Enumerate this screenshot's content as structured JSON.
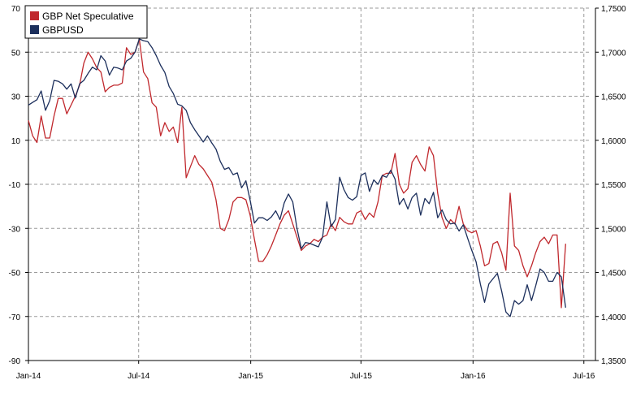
{
  "chart_data": {
    "type": "line",
    "title": "",
    "x_tick_labels": [
      "Jan-14",
      "Jul-14",
      "Jan-15",
      "Jul-15",
      "Jan-16",
      "Jul-16"
    ],
    "x_range": [
      "2014-01-01",
      "2016-07-20"
    ],
    "y_left": {
      "ticks": [
        70,
        50,
        30,
        10,
        -10,
        -30,
        -50,
        -70,
        -90
      ],
      "ylim": [
        -90,
        70
      ]
    },
    "y_right": {
      "ticks": [
        1.75,
        1.7,
        1.65,
        1.6,
        1.55,
        1.5,
        1.45,
        1.4,
        1.35
      ],
      "tick_labels": [
        "1,7500",
        "1,7000",
        "1,6500",
        "1,6000",
        "1,5500",
        "1,5000",
        "1,4500",
        "1,4000",
        "1,3500"
      ],
      "ylim": [
        1.35,
        1.75
      ]
    },
    "grid": true,
    "legend_position": "top-left",
    "series": [
      {
        "name": "GBP Net Speculative",
        "axis": "left",
        "color": "#c0282d",
        "points": [
          [
            "2014-01-01",
            19
          ],
          [
            "2014-01-08",
            12
          ],
          [
            "2014-01-15",
            9
          ],
          [
            "2014-01-22",
            21
          ],
          [
            "2014-01-29",
            11
          ],
          [
            "2014-02-05",
            11
          ],
          [
            "2014-02-12",
            21
          ],
          [
            "2014-02-19",
            29
          ],
          [
            "2014-02-26",
            29
          ],
          [
            "2014-03-05",
            22
          ],
          [
            "2014-03-12",
            26
          ],
          [
            "2014-03-19",
            30
          ],
          [
            "2014-03-26",
            35
          ],
          [
            "2014-04-02",
            45
          ],
          [
            "2014-04-09",
            50
          ],
          [
            "2014-04-16",
            47
          ],
          [
            "2014-04-23",
            43
          ],
          [
            "2014-04-30",
            41
          ],
          [
            "2014-05-07",
            32
          ],
          [
            "2014-05-14",
            34
          ],
          [
            "2014-05-21",
            35
          ],
          [
            "2014-05-28",
            35
          ],
          [
            "2014-06-04",
            36
          ],
          [
            "2014-06-11",
            52
          ],
          [
            "2014-06-18",
            49
          ],
          [
            "2014-06-25",
            50
          ],
          [
            "2014-07-02",
            56
          ],
          [
            "2014-07-09",
            41
          ],
          [
            "2014-07-16",
            38
          ],
          [
            "2014-07-23",
            27
          ],
          [
            "2014-07-30",
            25
          ],
          [
            "2014-08-06",
            12
          ],
          [
            "2014-08-13",
            18
          ],
          [
            "2014-08-20",
            14
          ],
          [
            "2014-08-27",
            16
          ],
          [
            "2014-09-03",
            9
          ],
          [
            "2014-09-10",
            25
          ],
          [
            "2014-09-17",
            -7
          ],
          [
            "2014-09-24",
            -2
          ],
          [
            "2014-10-01",
            3
          ],
          [
            "2014-10-08",
            -1
          ],
          [
            "2014-10-15",
            -3
          ],
          [
            "2014-10-22",
            -6
          ],
          [
            "2014-10-29",
            -9
          ],
          [
            "2014-11-05",
            -17
          ],
          [
            "2014-11-12",
            -30
          ],
          [
            "2014-11-19",
            -31
          ],
          [
            "2014-11-26",
            -26
          ],
          [
            "2014-12-03",
            -18
          ],
          [
            "2014-12-10",
            -16
          ],
          [
            "2014-12-17",
            -16
          ],
          [
            "2014-12-24",
            -17
          ],
          [
            "2014-12-31",
            -24
          ],
          [
            "2015-01-07",
            -35
          ],
          [
            "2015-01-14",
            -45
          ],
          [
            "2015-01-21",
            -45
          ],
          [
            "2015-01-28",
            -42
          ],
          [
            "2015-02-04",
            -38
          ],
          [
            "2015-02-11",
            -33
          ],
          [
            "2015-02-18",
            -28
          ],
          [
            "2015-02-25",
            -24
          ],
          [
            "2015-03-04",
            -22
          ],
          [
            "2015-03-11",
            -28
          ],
          [
            "2015-03-18",
            -34
          ],
          [
            "2015-03-25",
            -40
          ],
          [
            "2015-04-01",
            -38
          ],
          [
            "2015-04-08",
            -37
          ],
          [
            "2015-04-15",
            -35
          ],
          [
            "2015-04-22",
            -36
          ],
          [
            "2015-04-29",
            -34
          ],
          [
            "2015-05-06",
            -33
          ],
          [
            "2015-05-13",
            -28
          ],
          [
            "2015-05-20",
            -31
          ],
          [
            "2015-05-27",
            -25
          ],
          [
            "2015-06-03",
            -27
          ],
          [
            "2015-06-10",
            -28
          ],
          [
            "2015-06-17",
            -28
          ],
          [
            "2015-06-24",
            -23
          ],
          [
            "2015-07-01",
            -22
          ],
          [
            "2015-07-08",
            -26
          ],
          [
            "2015-07-15",
            -23
          ],
          [
            "2015-07-22",
            -25
          ],
          [
            "2015-07-29",
            -18
          ],
          [
            "2015-08-05",
            -6
          ],
          [
            "2015-08-12",
            -5
          ],
          [
            "2015-08-19",
            -5
          ],
          [
            "2015-08-26",
            4
          ],
          [
            "2015-09-02",
            -10
          ],
          [
            "2015-09-09",
            -14
          ],
          [
            "2015-09-16",
            -12
          ],
          [
            "2015-09-23",
            0
          ],
          [
            "2015-09-30",
            3
          ],
          [
            "2015-10-07",
            -1
          ],
          [
            "2015-10-14",
            -4
          ],
          [
            "2015-10-21",
            7
          ],
          [
            "2015-10-28",
            3
          ],
          [
            "2015-11-04",
            -14
          ],
          [
            "2015-11-11",
            -25
          ],
          [
            "2015-11-18",
            -30
          ],
          [
            "2015-11-25",
            -26
          ],
          [
            "2015-12-02",
            -28
          ],
          [
            "2015-12-09",
            -20
          ],
          [
            "2015-12-16",
            -28
          ],
          [
            "2015-12-23",
            -31
          ],
          [
            "2015-12-30",
            -32
          ],
          [
            "2016-01-06",
            -31
          ],
          [
            "2016-01-13",
            -38
          ],
          [
            "2016-01-20",
            -47
          ],
          [
            "2016-01-27",
            -46
          ],
          [
            "2016-02-03",
            -37
          ],
          [
            "2016-02-10",
            -36
          ],
          [
            "2016-02-17",
            -41
          ],
          [
            "2016-02-24",
            -49
          ],
          [
            "2016-03-02",
            -14
          ],
          [
            "2016-03-09",
            -38
          ],
          [
            "2016-03-16",
            -40
          ],
          [
            "2016-03-23",
            -47
          ],
          [
            "2016-03-30",
            -52
          ],
          [
            "2016-04-06",
            -47
          ],
          [
            "2016-04-13",
            -41
          ],
          [
            "2016-04-20",
            -36
          ],
          [
            "2016-04-27",
            -34
          ],
          [
            "2016-05-04",
            -37
          ],
          [
            "2016-05-11",
            -33
          ],
          [
            "2016-05-18",
            -33
          ],
          [
            "2016-05-25",
            -66
          ],
          [
            "2016-06-01",
            -37
          ]
        ]
      },
      {
        "name": "GBPUSD",
        "axis": "right",
        "color": "#1c2f5c",
        "points": [
          [
            "2014-01-01",
            1.64
          ],
          [
            "2014-01-08",
            1.643
          ],
          [
            "2014-01-15",
            1.646
          ],
          [
            "2014-01-22",
            1.656
          ],
          [
            "2014-01-29",
            1.634
          ],
          [
            "2014-02-05",
            1.645
          ],
          [
            "2014-02-12",
            1.668
          ],
          [
            "2014-02-19",
            1.667
          ],
          [
            "2014-02-26",
            1.664
          ],
          [
            "2014-03-05",
            1.658
          ],
          [
            "2014-03-12",
            1.664
          ],
          [
            "2014-03-19",
            1.648
          ],
          [
            "2014-03-26",
            1.664
          ],
          [
            "2014-04-02",
            1.668
          ],
          [
            "2014-04-09",
            1.676
          ],
          [
            "2014-04-16",
            1.683
          ],
          [
            "2014-04-23",
            1.68
          ],
          [
            "2014-04-30",
            1.696
          ],
          [
            "2014-05-07",
            1.69
          ],
          [
            "2014-05-14",
            1.674
          ],
          [
            "2014-05-21",
            1.683
          ],
          [
            "2014-05-28",
            1.682
          ],
          [
            "2014-06-04",
            1.68
          ],
          [
            "2014-06-11",
            1.69
          ],
          [
            "2014-06-18",
            1.693
          ],
          [
            "2014-06-25",
            1.7
          ],
          [
            "2014-07-02",
            1.715
          ],
          [
            "2014-07-09",
            1.713
          ],
          [
            "2014-07-16",
            1.712
          ],
          [
            "2014-07-23",
            1.705
          ],
          [
            "2014-07-30",
            1.696
          ],
          [
            "2014-08-06",
            1.685
          ],
          [
            "2014-08-13",
            1.677
          ],
          [
            "2014-08-20",
            1.661
          ],
          [
            "2014-08-27",
            1.653
          ],
          [
            "2014-09-03",
            1.641
          ],
          [
            "2014-09-10",
            1.639
          ],
          [
            "2014-09-17",
            1.634
          ],
          [
            "2014-09-24",
            1.62
          ],
          [
            "2014-10-01",
            1.612
          ],
          [
            "2014-10-08",
            1.605
          ],
          [
            "2014-10-15",
            1.598
          ],
          [
            "2014-10-22",
            1.605
          ],
          [
            "2014-10-29",
            1.597
          ],
          [
            "2014-11-05",
            1.59
          ],
          [
            "2014-11-12",
            1.576
          ],
          [
            "2014-11-19",
            1.567
          ],
          [
            "2014-11-26",
            1.569
          ],
          [
            "2014-12-03",
            1.561
          ],
          [
            "2014-12-10",
            1.563
          ],
          [
            "2014-12-17",
            1.546
          ],
          [
            "2014-12-24",
            1.554
          ],
          [
            "2014-12-31",
            1.532
          ],
          [
            "2015-01-07",
            1.506
          ],
          [
            "2015-01-14",
            1.512
          ],
          [
            "2015-01-21",
            1.512
          ],
          [
            "2015-01-28",
            1.509
          ],
          [
            "2015-02-04",
            1.513
          ],
          [
            "2015-02-11",
            1.52
          ],
          [
            "2015-02-18",
            1.51
          ],
          [
            "2015-02-25",
            1.529
          ],
          [
            "2015-03-04",
            1.539
          ],
          [
            "2015-03-11",
            1.53
          ],
          [
            "2015-03-18",
            1.5
          ],
          [
            "2015-03-25",
            1.477
          ],
          [
            "2015-04-01",
            1.484
          ],
          [
            "2015-04-08",
            1.483
          ],
          [
            "2015-04-15",
            1.481
          ],
          [
            "2015-04-22",
            1.479
          ],
          [
            "2015-04-29",
            1.49
          ],
          [
            "2015-05-06",
            1.53
          ],
          [
            "2015-05-13",
            1.502
          ],
          [
            "2015-05-20",
            1.51
          ],
          [
            "2015-05-27",
            1.558
          ],
          [
            "2015-06-03",
            1.544
          ],
          [
            "2015-06-10",
            1.535
          ],
          [
            "2015-06-17",
            1.532
          ],
          [
            "2015-06-24",
            1.536
          ],
          [
            "2015-07-01",
            1.56
          ],
          [
            "2015-07-08",
            1.563
          ],
          [
            "2015-07-15",
            1.542
          ],
          [
            "2015-07-22",
            1.555
          ],
          [
            "2015-07-29",
            1.55
          ],
          [
            "2015-08-05",
            1.56
          ],
          [
            "2015-08-12",
            1.558
          ],
          [
            "2015-08-19",
            1.566
          ],
          [
            "2015-08-26",
            1.556
          ],
          [
            "2015-09-02",
            1.527
          ],
          [
            "2015-09-09",
            1.534
          ],
          [
            "2015-09-16",
            1.522
          ],
          [
            "2015-09-23",
            1.535
          ],
          [
            "2015-09-30",
            1.54
          ],
          [
            "2015-10-07",
            1.515
          ],
          [
            "2015-10-14",
            1.534
          ],
          [
            "2015-10-21",
            1.528
          ],
          [
            "2015-10-28",
            1.541
          ],
          [
            "2015-11-04",
            1.512
          ],
          [
            "2015-11-11",
            1.521
          ],
          [
            "2015-11-18",
            1.51
          ],
          [
            "2015-11-25",
            1.505
          ],
          [
            "2015-12-02",
            1.506
          ],
          [
            "2015-12-09",
            1.497
          ],
          [
            "2015-12-16",
            1.504
          ],
          [
            "2015-12-23",
            1.489
          ],
          [
            "2015-12-30",
            1.475
          ],
          [
            "2016-01-06",
            1.462
          ],
          [
            "2016-01-13",
            1.437
          ],
          [
            "2016-01-20",
            1.416
          ],
          [
            "2016-01-27",
            1.437
          ],
          [
            "2016-02-03",
            1.443
          ],
          [
            "2016-02-10",
            1.449
          ],
          [
            "2016-02-17",
            1.429
          ],
          [
            "2016-02-24",
            1.405
          ],
          [
            "2016-03-02",
            1.4
          ],
          [
            "2016-03-09",
            1.418
          ],
          [
            "2016-03-16",
            1.414
          ],
          [
            "2016-03-23",
            1.418
          ],
          [
            "2016-03-30",
            1.436
          ],
          [
            "2016-04-06",
            1.418
          ],
          [
            "2016-04-13",
            1.435
          ],
          [
            "2016-04-20",
            1.454
          ],
          [
            "2016-04-27",
            1.45
          ],
          [
            "2016-05-04",
            1.44
          ],
          [
            "2016-05-11",
            1.44
          ],
          [
            "2016-05-18",
            1.45
          ],
          [
            "2016-05-25",
            1.445
          ],
          [
            "2016-06-01",
            1.41
          ]
        ]
      }
    ]
  }
}
